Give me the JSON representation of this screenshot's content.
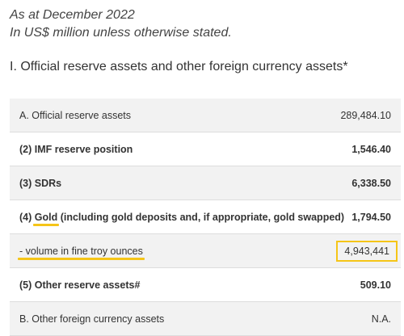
{
  "header": {
    "as_at": "As at December 2022",
    "units": "In US$ million unless otherwise stated."
  },
  "section": {
    "title": "I. Official reserve assets and other foreign currency assets*"
  },
  "rows": [
    {
      "label": "A. Official reserve assets",
      "value": "289,484.10"
    },
    {
      "label": "(2) IMF reserve position",
      "value": "1,546.40"
    },
    {
      "label": "(3) SDRs",
      "value": "6,338.50"
    },
    {
      "label_prefix": "(4) ",
      "label_highlight": "Gold",
      "label_suffix": " (including gold deposits and, if appropriate, gold swapped)",
      "value": "1,794.50"
    },
    {
      "label": "- volume in fine troy ounces",
      "value": "4,943,441"
    },
    {
      "label": "(5) Other reserve assets#",
      "value": "509.10"
    },
    {
      "label": "B. Other foreign currency assets",
      "value": "N.A."
    }
  ],
  "colors": {
    "highlight": "#f5c518",
    "row_alt": "#f2f2f2"
  }
}
